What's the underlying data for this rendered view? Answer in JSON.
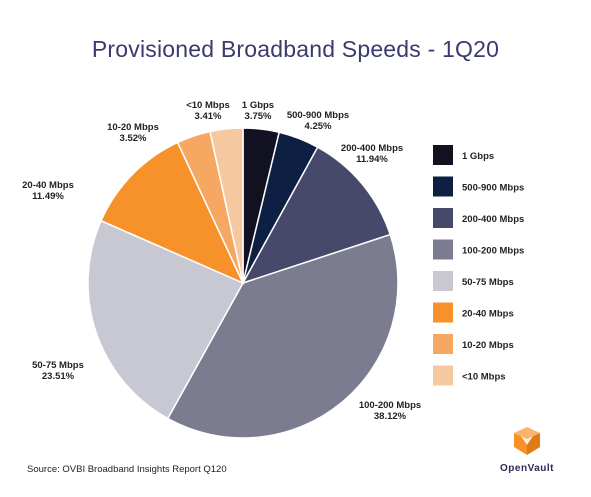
{
  "chart_data": {
    "type": "pie",
    "title": "Provisioned Broadband Speeds - 1Q20",
    "slices": [
      {
        "name": "1 Gbps",
        "value": 3.75,
        "label_pct": "3.75%",
        "color": "#111121"
      },
      {
        "name": "500-900 Mbps",
        "value": 4.25,
        "label_pct": "4.25%",
        "color": "#0d1f42"
      },
      {
        "name": "200-400 Mbps",
        "value": 11.94,
        "label_pct": "11.94%",
        "color": "#47496a"
      },
      {
        "name": "100-200 Mbps",
        "value": 38.12,
        "label_pct": "38.12%",
        "color": "#7b7c8f"
      },
      {
        "name": "50-75 Mbps",
        "value": 23.51,
        "label_pct": "23.51%",
        "color": "#c8c8d2"
      },
      {
        "name": "20-40 Mbps",
        "value": 11.49,
        "label_pct": "11.49%",
        "color": "#f7922b"
      },
      {
        "name": "10-20 Mbps",
        "value": 3.52,
        "label_pct": "3.52%",
        "color": "#f6a863"
      },
      {
        "name": "<10 Mbps",
        "value": 3.41,
        "label_pct": "3.41%",
        "color": "#f5c89f"
      }
    ],
    "legend_position": "right",
    "source": "Source: OVBI Broadband Insights Report Q120"
  },
  "logo": {
    "text": "OpenVault",
    "color": "#f7922b"
  }
}
